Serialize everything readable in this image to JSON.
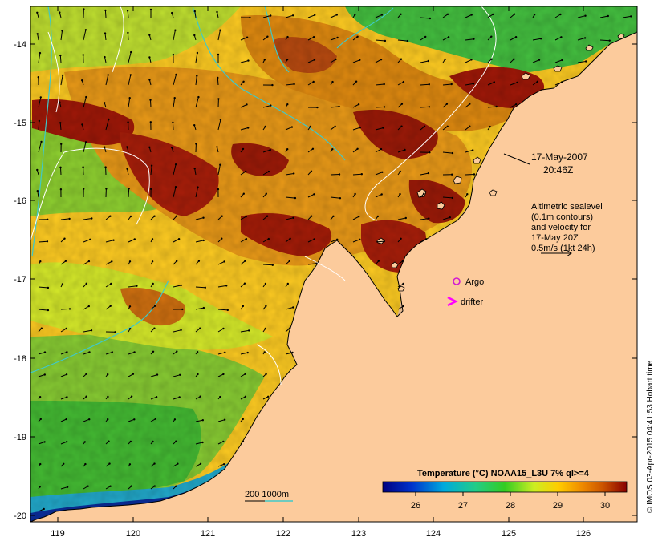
{
  "map": {
    "type": "sea surface temperature map",
    "date": "17-May-2007",
    "time": "20:46Z",
    "lon_ticks": [
      "119",
      "120",
      "121",
      "122",
      "123",
      "124",
      "125",
      "126"
    ],
    "lat_ticks": [
      "-14",
      "-15",
      "-16",
      "-17",
      "-18",
      "-19",
      "-20"
    ],
    "altimetry_note": [
      "Altimetric sealevel",
      "(0.1m contours)",
      "and velocity for",
      "17-May 20Z",
      "0.5m/s (1kt 24h)"
    ],
    "argo_label": "Argo",
    "drifter_label": "drifter",
    "bathymetry_label": "200  1000m",
    "colorbar_title": "Temperature (°C) NOAA15_L3U 7% ql>=4",
    "colorbar_ticks": [
      "26",
      "27",
      "28",
      "29",
      "30"
    ],
    "credit": "© IMOS 03-Apr-2015 04:41:53 Hobart time",
    "colors": {
      "land": "#fccb9c",
      "argo": "#d11cd1",
      "drifter": "#ff00ff",
      "contour_white": "#ffffff",
      "contour_cyan": "#3fc9c9"
    }
  }
}
